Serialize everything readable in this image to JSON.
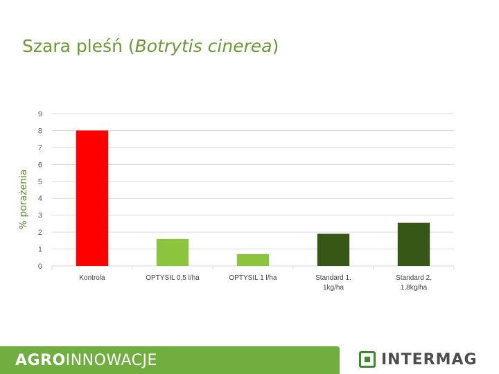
{
  "slide": {
    "title_prefix": "Szara pleśń (",
    "title_latin": "Botrytis cinerea",
    "title_suffix": ")"
  },
  "brand": {
    "left_strong": "AGRO",
    "left_rest": "INNOWACJE",
    "right": "INTERMAG"
  },
  "chart_data": {
    "type": "bar",
    "ylabel": "% porażenia",
    "ylim": [
      0,
      9
    ],
    "yticks": [
      0,
      1,
      2,
      3,
      4,
      5,
      6,
      7,
      8,
      9
    ],
    "grid": true,
    "categories": [
      [
        "Kontrola"
      ],
      [
        "OPTYSIL 0,5 l/ha"
      ],
      [
        "OPTYSIL 1 l/ha"
      ],
      [
        "Standard 1.",
        "1kg/ha"
      ],
      [
        "Standard 2,",
        "1,8kg/ha"
      ]
    ],
    "values": [
      8.0,
      1.6,
      0.7,
      1.9,
      2.55
    ],
    "colors": [
      "#ff0000",
      "#8cc43e",
      "#8cc43e",
      "#375717",
      "#375717"
    ]
  }
}
